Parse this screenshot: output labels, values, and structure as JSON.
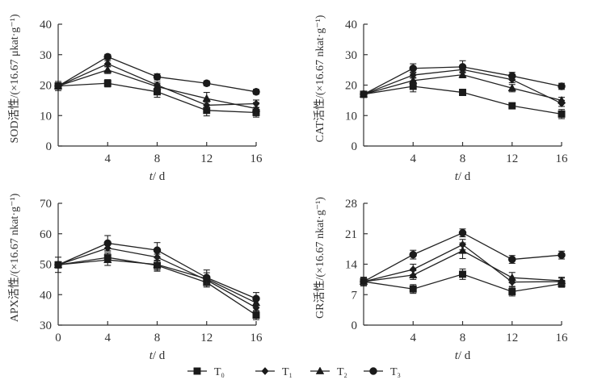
{
  "figure": {
    "legend": {
      "position": "bottom-center",
      "entries": [
        {
          "series": "T0",
          "base": "T",
          "sub": "0",
          "marker": "square"
        },
        {
          "series": "T1",
          "base": "T",
          "sub": "1",
          "marker": "diamond"
        },
        {
          "series": "T2",
          "base": "T",
          "sub": "2",
          "marker": "triangle"
        },
        {
          "series": "T3",
          "base": "T",
          "sub": "3",
          "marker": "circle"
        }
      ]
    }
  },
  "chart_data": [
    {
      "id": "sod",
      "type": "line",
      "title": "",
      "xlabel_italic": "t",
      "xlabel_rest": "/ d",
      "ylabel": "SOD活性/(×16.67 μkat·g⁻¹)",
      "x": [
        0,
        4,
        8,
        12,
        16
      ],
      "xticks": [
        "",
        "4",
        "8",
        "12",
        "16"
      ],
      "xlim": [
        0,
        16
      ],
      "ylim": [
        0,
        40
      ],
      "yticks": [
        0,
        10,
        20,
        30,
        40
      ],
      "grid": false,
      "series": [
        {
          "name": "T0",
          "marker": "square",
          "values": [
            19.7,
            20.6,
            17.8,
            11.7,
            11.0
          ],
          "errors": [
            1.5,
            1.2,
            1.8,
            1.8,
            1.5
          ]
        },
        {
          "name": "T1",
          "marker": "diamond",
          "values": [
            19.7,
            27.0,
            20.0,
            13.4,
            13.9
          ],
          "errors": [
            1.0,
            1.0,
            1.0,
            1.0,
            1.2
          ]
        },
        {
          "name": "T2",
          "marker": "triangle",
          "values": [
            19.7,
            25.0,
            19.5,
            15.6,
            12.3
          ],
          "errors": [
            1.0,
            1.2,
            1.0,
            2.0,
            2.0
          ]
        },
        {
          "name": "T3",
          "marker": "circle",
          "values": [
            19.7,
            29.3,
            22.7,
            20.6,
            17.8
          ],
          "errors": [
            1.0,
            0.8,
            1.0,
            0.8,
            0.8
          ]
        }
      ]
    },
    {
      "id": "cat",
      "type": "line",
      "title": "",
      "xlabel_italic": "t",
      "xlabel_rest": "/ d",
      "ylabel": "CAT活性/(×16.67 nkat·g⁻¹)",
      "x": [
        0,
        4,
        8,
        12,
        16
      ],
      "xticks": [
        "",
        "4",
        "8",
        "12",
        "16"
      ],
      "xlim": [
        0,
        16
      ],
      "ylim": [
        0,
        40
      ],
      "yticks": [
        0,
        10,
        20,
        30,
        40
      ],
      "grid": false,
      "series": [
        {
          "name": "T0",
          "marker": "square",
          "values": [
            17.0,
            19.6,
            17.6,
            13.2,
            10.5
          ],
          "errors": [
            1.0,
            1.8,
            1.0,
            1.0,
            1.5
          ]
        },
        {
          "name": "T1",
          "marker": "diamond",
          "values": [
            17.0,
            23.3,
            25.1,
            21.8,
            14.0
          ],
          "errors": [
            1.0,
            1.0,
            1.0,
            1.0,
            1.0
          ]
        },
        {
          "name": "T2",
          "marker": "triangle",
          "values": [
            17.0,
            21.5,
            23.4,
            19.0,
            15.0
          ],
          "errors": [
            1.0,
            1.0,
            1.0,
            1.2,
            1.0
          ]
        },
        {
          "name": "T3",
          "marker": "circle",
          "values": [
            17.0,
            25.5,
            26.0,
            23.0,
            19.6
          ],
          "errors": [
            1.0,
            1.5,
            2.0,
            1.2,
            1.0
          ]
        }
      ]
    },
    {
      "id": "apx",
      "type": "line",
      "title": "",
      "xlabel_italic": "t",
      "xlabel_rest": "/ d",
      "ylabel": "APX活性/(×16.67 nkat·g⁻¹)",
      "x": [
        0,
        4,
        8,
        12,
        16
      ],
      "xticks": [
        "0",
        "4",
        "8",
        "12",
        "16"
      ],
      "xlim": [
        0,
        16
      ],
      "ylim": [
        30,
        70
      ],
      "yticks": [
        30,
        40,
        50,
        60,
        70
      ],
      "grid": false,
      "series": [
        {
          "name": "T0",
          "marker": "square",
          "values": [
            49.8,
            52.2,
            49.6,
            44.0,
            33.3
          ],
          "errors": [
            2.5,
            1.5,
            1.5,
            1.5,
            1.5
          ]
        },
        {
          "name": "T1",
          "marker": "diamond",
          "values": [
            49.8,
            55.3,
            52.3,
            44.8,
            35.7
          ],
          "errors": [
            1.0,
            1.0,
            1.0,
            1.0,
            1.0
          ]
        },
        {
          "name": "T2",
          "marker": "triangle",
          "values": [
            49.8,
            51.4,
            49.9,
            45.2,
            37.3
          ],
          "errors": [
            1.0,
            1.8,
            2.2,
            2.0,
            1.5
          ]
        },
        {
          "name": "T3",
          "marker": "circle",
          "values": [
            49.8,
            56.9,
            54.6,
            45.6,
            38.7
          ],
          "errors": [
            1.0,
            2.5,
            2.5,
            2.5,
            2.0
          ]
        }
      ]
    },
    {
      "id": "gr",
      "type": "line",
      "title": "",
      "xlabel_italic": "t",
      "xlabel_rest": "/ d",
      "ylabel": "GR活性/(×16.67 nkat·g⁻¹)",
      "x": [
        0,
        4,
        8,
        12,
        16
      ],
      "xticks": [
        "",
        "4",
        "8",
        "12",
        "16"
      ],
      "xlim": [
        0,
        16
      ],
      "ylim": [
        0,
        28
      ],
      "yticks": [
        0,
        7,
        14,
        21,
        28
      ],
      "grid": false,
      "series": [
        {
          "name": "T0",
          "marker": "square",
          "values": [
            10.0,
            8.3,
            11.7,
            7.7,
            9.5
          ],
          "errors": [
            1.0,
            1.0,
            1.2,
            1.0,
            0.8
          ]
        },
        {
          "name": "T1",
          "marker": "diamond",
          "values": [
            10.0,
            12.8,
            18.5,
            9.9,
            10.0
          ],
          "errors": [
            1.0,
            1.2,
            1.2,
            1.0,
            0.8
          ]
        },
        {
          "name": "T2",
          "marker": "triangle",
          "values": [
            10.0,
            11.5,
            17.1,
            10.9,
            10.2
          ],
          "errors": [
            1.0,
            1.0,
            1.8,
            1.2,
            0.8
          ]
        },
        {
          "name": "T3",
          "marker": "circle",
          "values": [
            10.0,
            16.2,
            21.2,
            15.1,
            16.1
          ],
          "errors": [
            1.0,
            1.0,
            0.9,
            0.9,
            0.9
          ]
        }
      ]
    }
  ]
}
